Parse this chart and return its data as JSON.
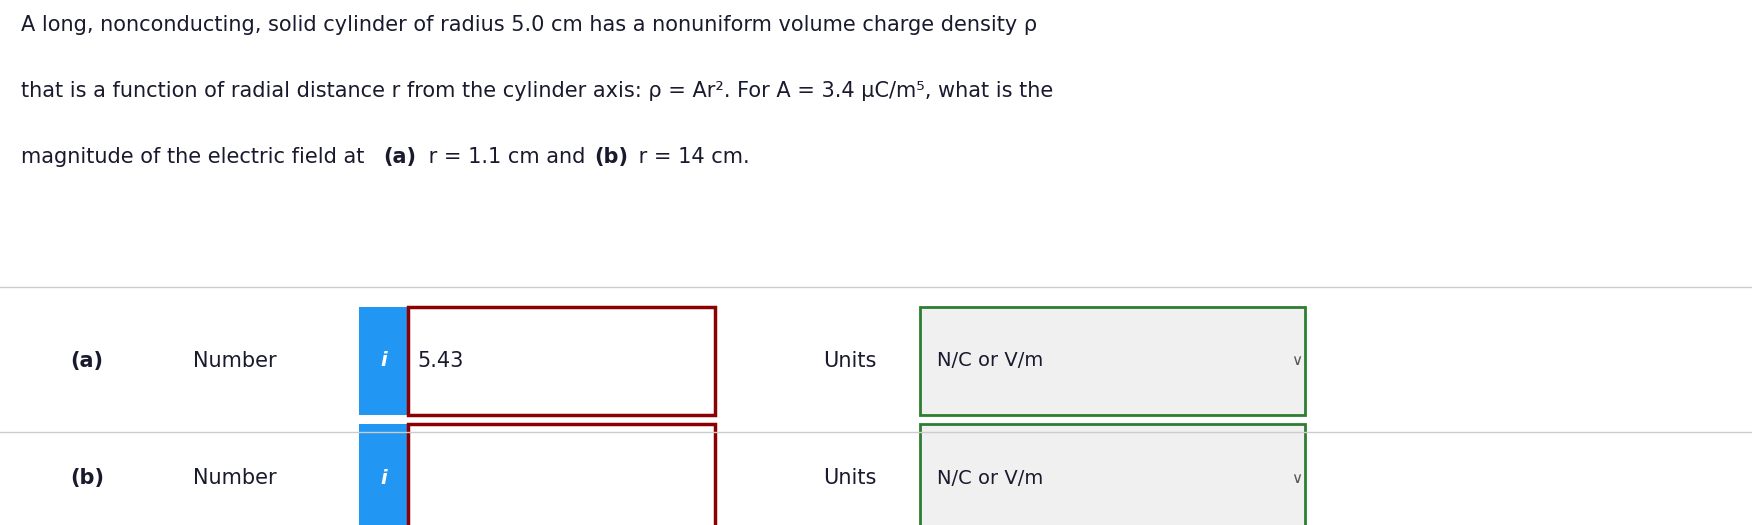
{
  "title_line1": "A long, nonconducting, solid cylinder of radius 5.0 cm has a nonuniform volume charge density ρ",
  "title_line2": "that is a function of radial distance r from the cylinder axis: ρ = Ar². For A = 3.4 μC/m⁵, what is the",
  "title_line3_prefix": "magnitude of the electric field at ",
  "title_line3_a": "(a)",
  "title_line3_mid": " r = 1.1 cm and ",
  "title_line3_b": "(b)",
  "title_line3_suffix": " r = 14 cm.",
  "part_a_label": "(a)",
  "part_b_label": "(b)",
  "number_label": "Number",
  "units_label": "Units",
  "part_a_value": "5.43",
  "part_b_value": "",
  "units_value": "N/C or V/m",
  "info_button_color": "#2196F3",
  "input_border_color": "#8B0000",
  "units_border_color": "#2E7D32",
  "background_color": "#ffffff",
  "panel_bg": "#f0f0f0",
  "panel_border": "#cccccc",
  "text_color": "#1a1a2e",
  "font_size_title": 15,
  "font_size_body": 14
}
